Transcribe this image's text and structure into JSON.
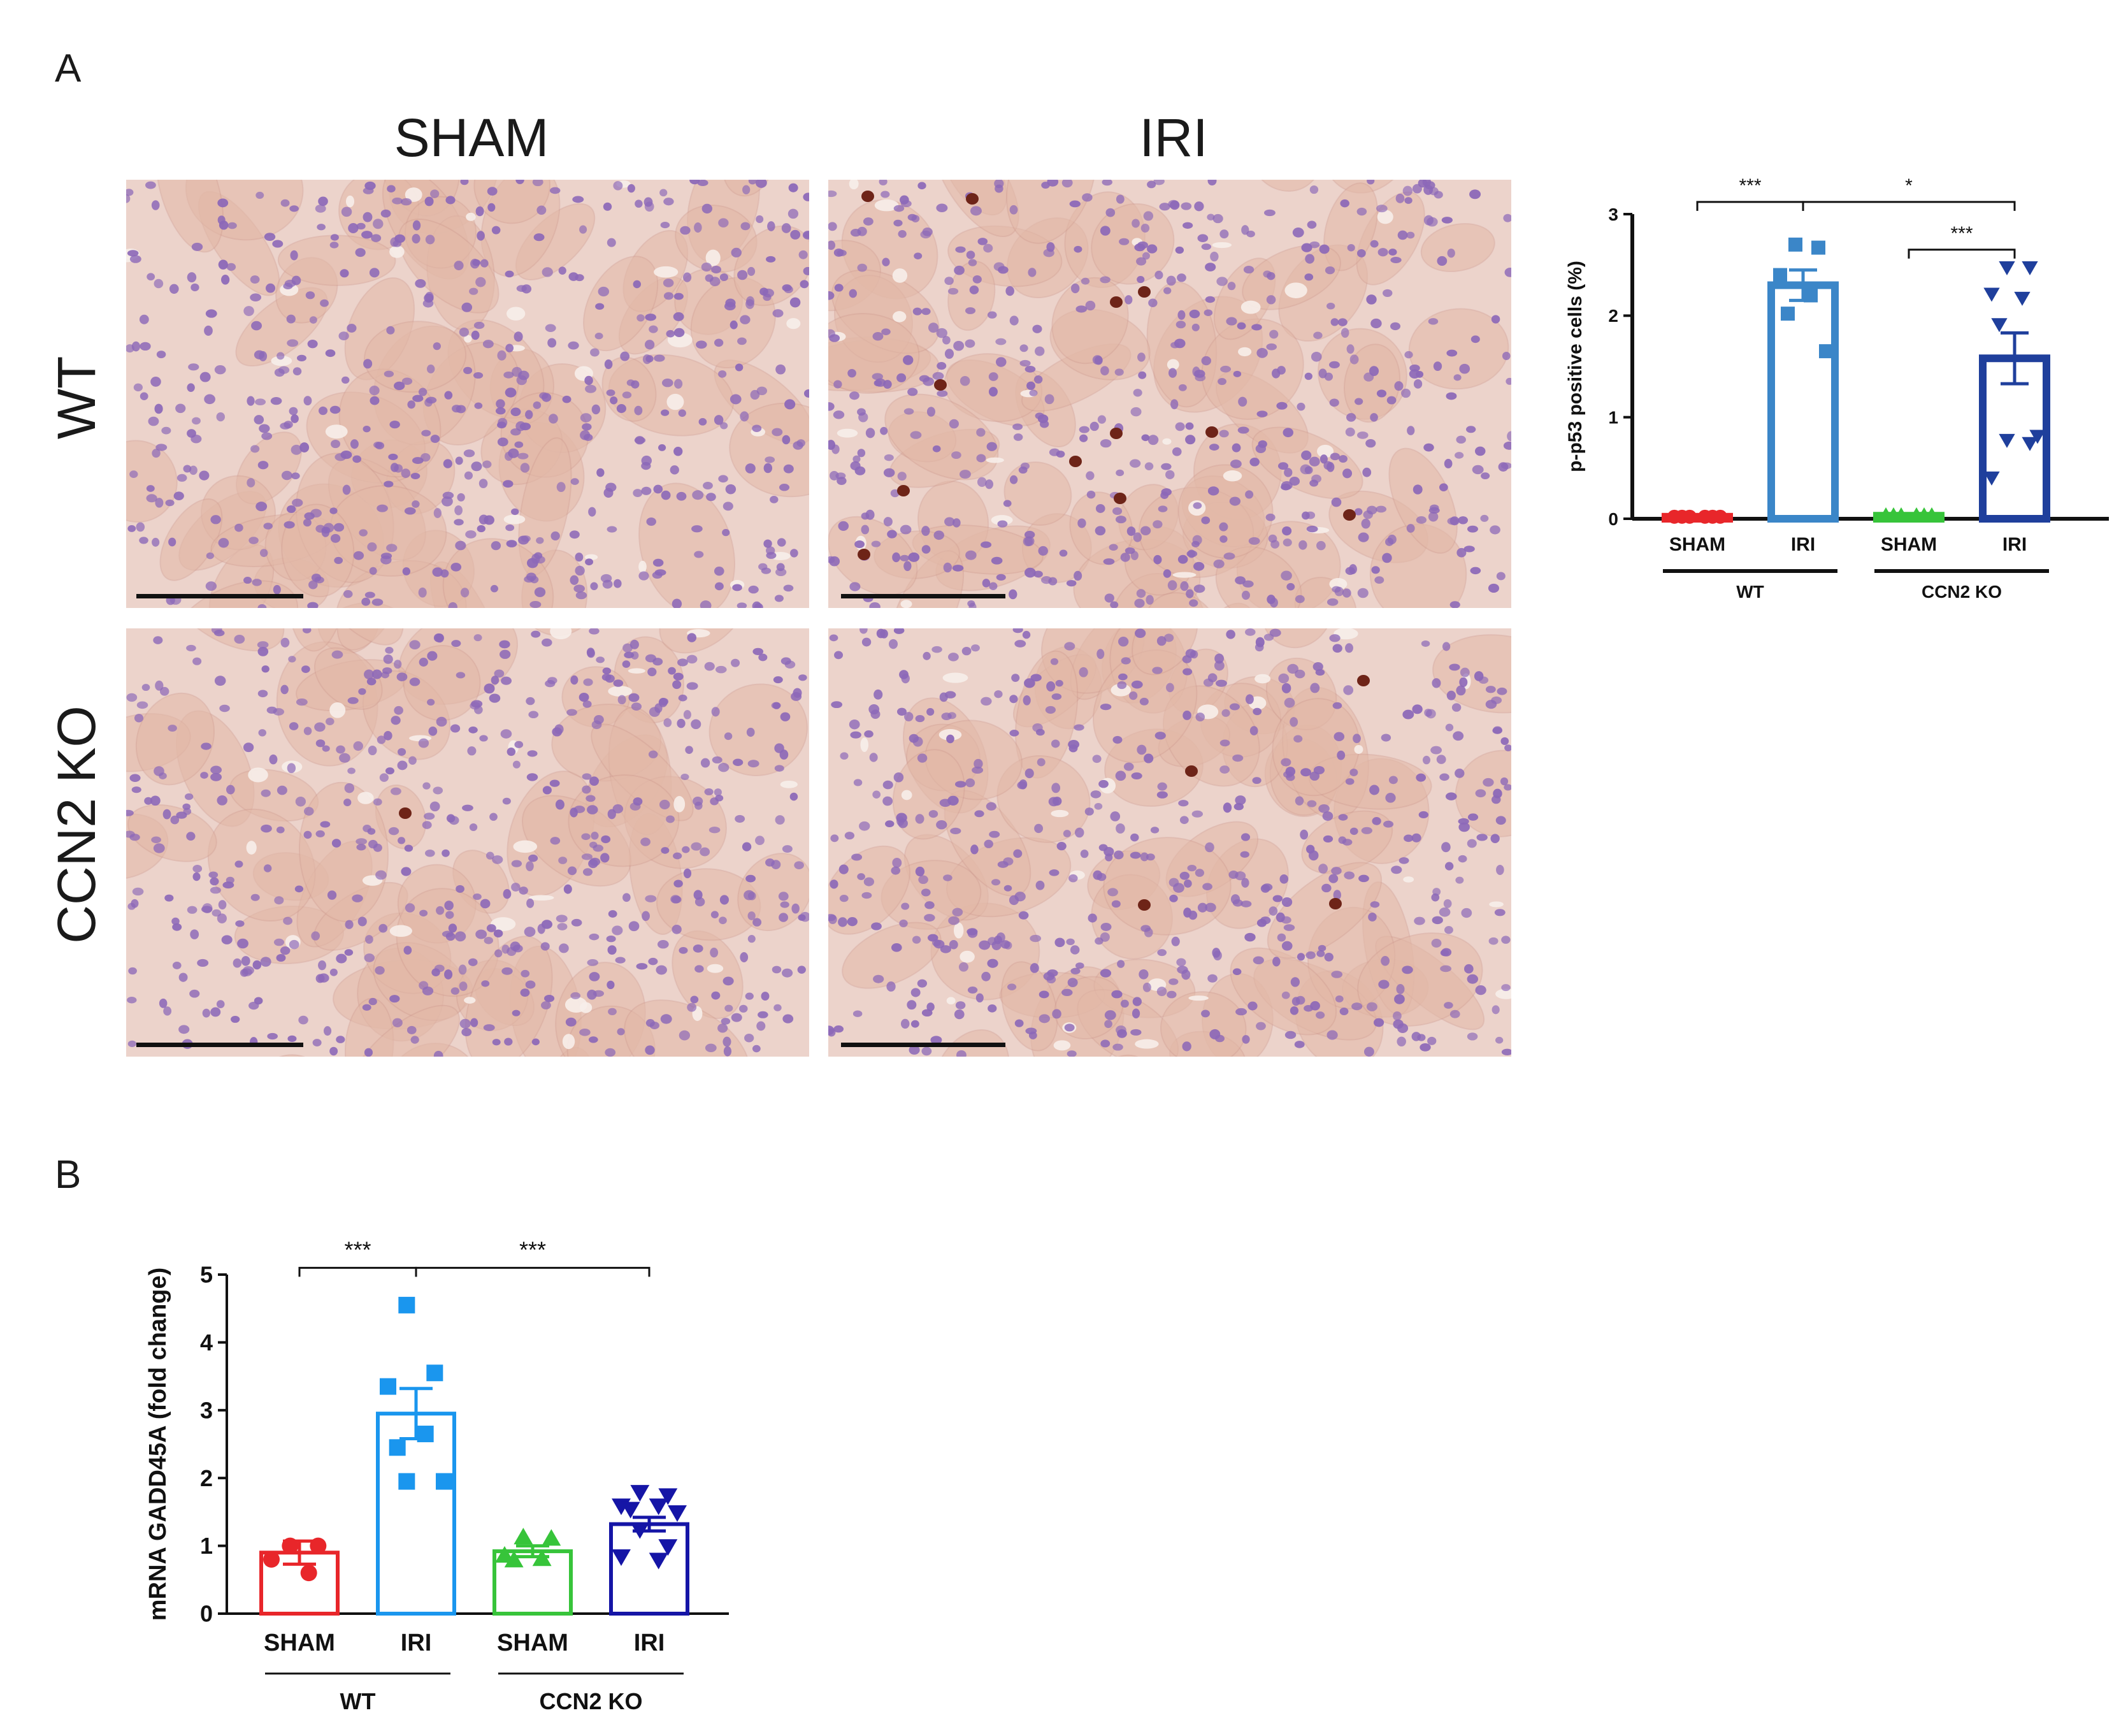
{
  "figure": {
    "panel_a_letter": "A",
    "panel_b_letter": "B",
    "col_labels": [
      "SHAM",
      "IRI"
    ],
    "row_labels": [
      "WT",
      "CCN2 KO"
    ]
  },
  "micrographs": [
    {
      "name": "micrograph-wt-sham",
      "label": "WT SHAM kidney section stained for p-p53"
    },
    {
      "name": "micrograph-wt-iri",
      "label": "WT IRI kidney section stained for p-p53"
    },
    {
      "name": "micrograph-ko-sham",
      "label": "CCN2 KO SHAM kidney section stained for p-p53"
    },
    {
      "name": "micrograph-ko-iri",
      "label": "CCN2 KO IRI kidney section stained for p-p53"
    }
  ],
  "colors": {
    "wt_sham": "#e8262a",
    "wt_iri": "#3b86c8",
    "ko_sham": "#37c43a",
    "ko_iri": "#1f3f9c",
    "wt_iri_b": "#1a96ee",
    "ko_iri_b": "#1515a6",
    "tissue_bg": "#ecd3cb",
    "tubule": "#e3b9a8",
    "nucleus": "#8c68b8",
    "positive_nucleus": "#6e2418"
  },
  "chart_data": [
    {
      "type": "bar",
      "panel": "A",
      "ylabel": "p-p53 positive cells (%)",
      "ylim": [
        0,
        3
      ],
      "yticks": [
        "0",
        "1",
        "2",
        "3"
      ],
      "categories": [
        "SHAM",
        "IRI",
        "SHAM",
        "IRI"
      ],
      "groups": [
        {
          "label": "WT",
          "categories": [
            0,
            1
          ]
        },
        {
          "label": "CCN2 KO",
          "categories": [
            2,
            3
          ]
        }
      ],
      "series": [
        {
          "category": "SHAM",
          "group": "WT",
          "mean": 0.02,
          "sem": 0.01,
          "marker": "circle",
          "color_key": "wt_sham",
          "points": [
            0.02,
            0.02,
            0.02,
            0.02,
            0.02,
            0.02
          ]
        },
        {
          "category": "IRI",
          "group": "WT",
          "mean": 2.3,
          "sem": 0.15,
          "marker": "square",
          "color_key": "wt_iri",
          "points": [
            2.7,
            2.67,
            2.4,
            2.2,
            2.02,
            1.65
          ]
        },
        {
          "category": "SHAM",
          "group": "CCN2 KO",
          "mean": 0.03,
          "sem": 0.01,
          "marker": "triangle-up",
          "color_key": "ko_sham",
          "points": [
            0.03,
            0.03,
            0.03,
            0.03,
            0.03,
            0.03
          ]
        },
        {
          "category": "IRI",
          "group": "CCN2 KO",
          "mean": 1.58,
          "sem": 0.25,
          "marker": "triangle-down",
          "color_key": "ko_iri",
          "points": [
            2.48,
            2.48,
            2.22,
            2.18,
            1.92,
            0.82,
            0.78,
            0.75,
            0.41
          ]
        }
      ],
      "significance": [
        {
          "from": 0,
          "to": 1,
          "y": 3.12,
          "label": "***"
        },
        {
          "from": 1,
          "to": 3,
          "y": 3.12,
          "label": "*"
        },
        {
          "from": 2,
          "to": 3,
          "y": 2.65,
          "label": "***"
        }
      ]
    },
    {
      "type": "bar",
      "panel": "B",
      "ylabel": "mRNA GADD45A (fold change)",
      "ylim": [
        0,
        5
      ],
      "yticks": [
        "0",
        "1",
        "2",
        "3",
        "4",
        "5"
      ],
      "categories": [
        "SHAM",
        "IRI",
        "SHAM",
        "IRI"
      ],
      "groups": [
        {
          "label": "WT",
          "categories": [
            0,
            1
          ]
        },
        {
          "label": "CCN2 KO",
          "categories": [
            2,
            3
          ]
        }
      ],
      "series": [
        {
          "category": "SHAM",
          "group": "WT",
          "mean": 0.9,
          "sem": 0.17,
          "marker": "circle",
          "color_key": "wt_sham",
          "points": [
            1.0,
            1.0,
            0.8,
            0.6
          ]
        },
        {
          "category": "IRI",
          "group": "WT",
          "mean": 2.95,
          "sem": 0.37,
          "marker": "square",
          "color_key": "wt_iri_b",
          "points": [
            4.55,
            3.55,
            3.35,
            2.65,
            2.45,
            1.95,
            1.95
          ]
        },
        {
          "category": "SHAM",
          "group": "CCN2 KO",
          "mean": 0.92,
          "sem": 0.08,
          "marker": "triangle-up",
          "color_key": "ko_sham",
          "points": [
            1.12,
            1.1,
            0.85,
            0.8,
            0.78
          ]
        },
        {
          "category": "IRI",
          "group": "CCN2 KO",
          "mean": 1.32,
          "sem": 0.1,
          "marker": "triangle-down",
          "color_key": "ko_iri_b",
          "points": [
            1.8,
            1.75,
            1.6,
            1.6,
            1.55,
            1.5,
            1.25,
            1.0,
            0.85,
            0.8
          ]
        }
      ],
      "significance": [
        {
          "from": 0,
          "to": 1,
          "y": 5.1,
          "label": "***"
        },
        {
          "from": 1,
          "to": 3,
          "y": 5.1,
          "label": "***"
        }
      ]
    }
  ]
}
